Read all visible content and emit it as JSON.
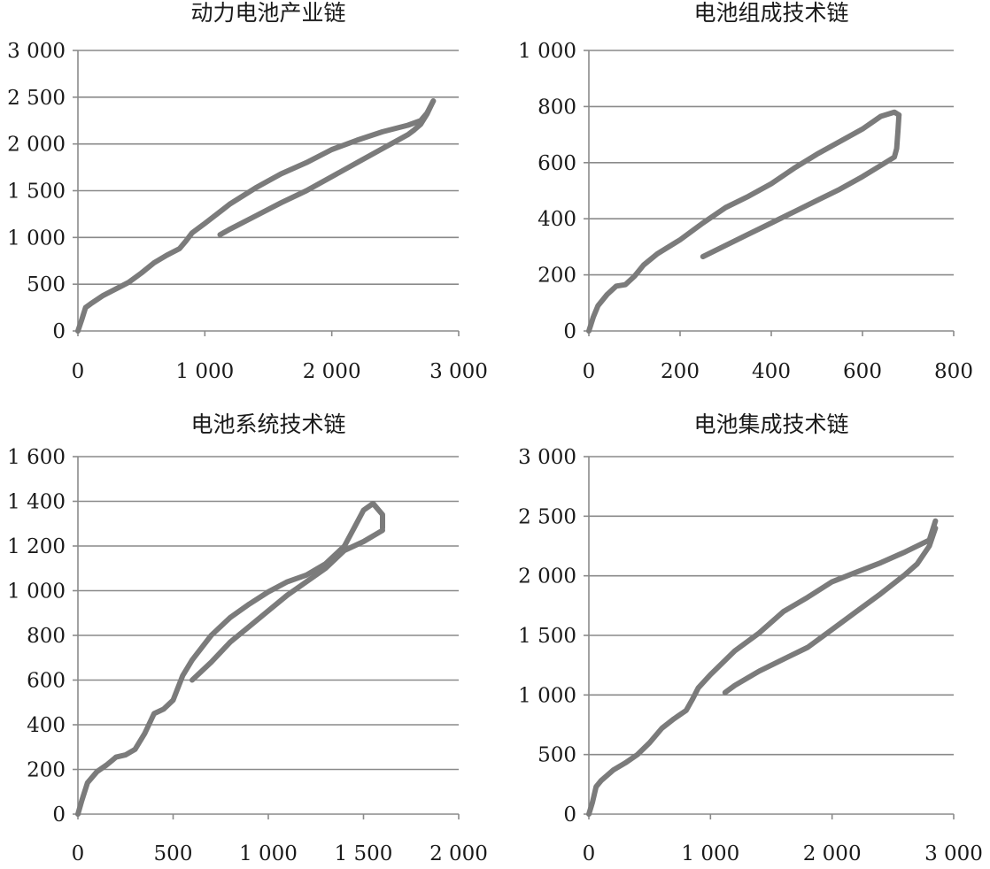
{
  "chart_data": [
    {
      "type": "line",
      "title": "动力电池产业链",
      "xlabel": "",
      "ylabel": "",
      "xlim": [
        0,
        3000
      ],
      "ylim": [
        0,
        3000
      ],
      "xticks": [
        0,
        1000,
        2000,
        3000
      ],
      "xtick_labels": [
        "0",
        "1 000",
        "2 000",
        "3 000"
      ],
      "yticks": [
        0,
        500,
        1000,
        1500,
        2000,
        2500,
        3000
      ],
      "ytick_labels": [
        "0",
        "500",
        "1 000",
        "1 500",
        "2 000",
        "2 500",
        "3 000"
      ],
      "grid": true,
      "series": [
        {
          "x": [
            0,
            30,
            60,
            100,
            200,
            300,
            400,
            500,
            600,
            700,
            800,
            850,
            900,
            1000,
            1200,
            1400,
            1600,
            1800,
            2000,
            2200,
            2400,
            2600,
            2700,
            2750,
            2800
          ],
          "y": [
            0,
            120,
            250,
            290,
            380,
            450,
            520,
            620,
            730,
            810,
            880,
            960,
            1050,
            1150,
            1360,
            1530,
            1680,
            1800,
            1940,
            2040,
            2130,
            2200,
            2250,
            2330,
            2460
          ]
        },
        {
          "x": [
            2800,
            2750,
            2700,
            2650,
            2600,
            2400,
            2200,
            2000,
            1800,
            1600,
            1400,
            1200,
            1120
          ],
          "y": [
            2460,
            2320,
            2210,
            2150,
            2100,
            1950,
            1800,
            1650,
            1500,
            1370,
            1230,
            1090,
            1030
          ]
        }
      ]
    },
    {
      "type": "line",
      "title": "电池组成技术链",
      "xlabel": "",
      "ylabel": "",
      "xlim": [
        0,
        800
      ],
      "ylim": [
        0,
        1000
      ],
      "xticks": [
        0,
        200,
        400,
        600,
        800
      ],
      "xtick_labels": [
        "0",
        "200",
        "400",
        "600",
        "800"
      ],
      "yticks": [
        0,
        200,
        400,
        600,
        800,
        1000
      ],
      "ytick_labels": [
        "0",
        "200",
        "400",
        "600",
        "800",
        "1 000"
      ],
      "grid": true,
      "series": [
        {
          "x": [
            0,
            10,
            20,
            40,
            60,
            80,
            100,
            120,
            150,
            200,
            250,
            300,
            350,
            400,
            450,
            500,
            550,
            600,
            640,
            670,
            680
          ],
          "y": [
            0,
            50,
            90,
            130,
            160,
            165,
            195,
            235,
            275,
            325,
            385,
            440,
            480,
            525,
            580,
            630,
            675,
            720,
            765,
            780,
            770
          ]
        },
        {
          "x": [
            680,
            678,
            675,
            670,
            640,
            600,
            550,
            500,
            450,
            400,
            350,
            300,
            250
          ],
          "y": [
            770,
            720,
            650,
            620,
            590,
            550,
            505,
            465,
            425,
            385,
            345,
            305,
            265
          ]
        }
      ]
    },
    {
      "type": "line",
      "title": "电池系统技术链",
      "xlabel": "",
      "ylabel": "",
      "xlim": [
        0,
        2000
      ],
      "ylim": [
        0,
        1600
      ],
      "xticks": [
        0,
        500,
        1000,
        1500,
        2000
      ],
      "xtick_labels": [
        "0",
        "500",
        "1 000",
        "1 500",
        "2 000"
      ],
      "yticks": [
        0,
        200,
        400,
        600,
        800,
        1000,
        1200,
        1400,
        1600
      ],
      "ytick_labels": [
        "0",
        "200",
        "400",
        "600",
        "800",
        "1 000",
        "1 200",
        "1 400",
        "1 600"
      ],
      "grid": true,
      "series": [
        {
          "x": [
            0,
            20,
            50,
            100,
            150,
            200,
            250,
            300,
            350,
            400,
            450,
            500,
            550,
            600,
            700,
            800,
            900,
            1000,
            1100,
            1200,
            1300,
            1400,
            1450,
            1500,
            1550,
            1600,
            1600
          ],
          "y": [
            0,
            60,
            140,
            190,
            220,
            255,
            265,
            290,
            360,
            450,
            470,
            510,
            620,
            690,
            800,
            880,
            940,
            995,
            1040,
            1070,
            1120,
            1200,
            1280,
            1360,
            1390,
            1340,
            1280
          ]
        },
        {
          "x": [
            1600,
            1500,
            1400,
            1300,
            1200,
            1100,
            1000,
            900,
            800,
            700,
            600
          ],
          "y": [
            1270,
            1220,
            1180,
            1100,
            1040,
            980,
            910,
            840,
            770,
            680,
            600
          ]
        }
      ]
    },
    {
      "type": "line",
      "title": "电池集成技术链",
      "xlabel": "",
      "ylabel": "",
      "xlim": [
        0,
        3000
      ],
      "ylim": [
        0,
        3000
      ],
      "xticks": [
        0,
        1000,
        2000,
        3000
      ],
      "xtick_labels": [
        "0",
        "1 000",
        "2 000",
        "3 000"
      ],
      "yticks": [
        0,
        500,
        1000,
        1500,
        2000,
        2500,
        3000
      ],
      "ytick_labels": [
        "0",
        "500",
        "1 000",
        "1 500",
        "2 000",
        "2 500",
        "3 000"
      ],
      "grid": true,
      "series": [
        {
          "x": [
            0,
            30,
            60,
            100,
            200,
            300,
            400,
            500,
            600,
            700,
            800,
            850,
            900,
            1000,
            1200,
            1400,
            1600,
            1800,
            2000,
            2200,
            2400,
            2600,
            2800,
            2850
          ],
          "y": [
            0,
            100,
            230,
            280,
            370,
            430,
            500,
            600,
            720,
            800,
            870,
            960,
            1060,
            1170,
            1370,
            1520,
            1700,
            1820,
            1950,
            2030,
            2110,
            2200,
            2300,
            2460
          ]
        },
        {
          "x": [
            2850,
            2800,
            2700,
            2600,
            2400,
            2200,
            2000,
            1800,
            1600,
            1400,
            1200,
            1120
          ],
          "y": [
            2400,
            2250,
            2100,
            2010,
            1850,
            1700,
            1550,
            1400,
            1300,
            1200,
            1080,
            1020
          ]
        }
      ]
    }
  ]
}
